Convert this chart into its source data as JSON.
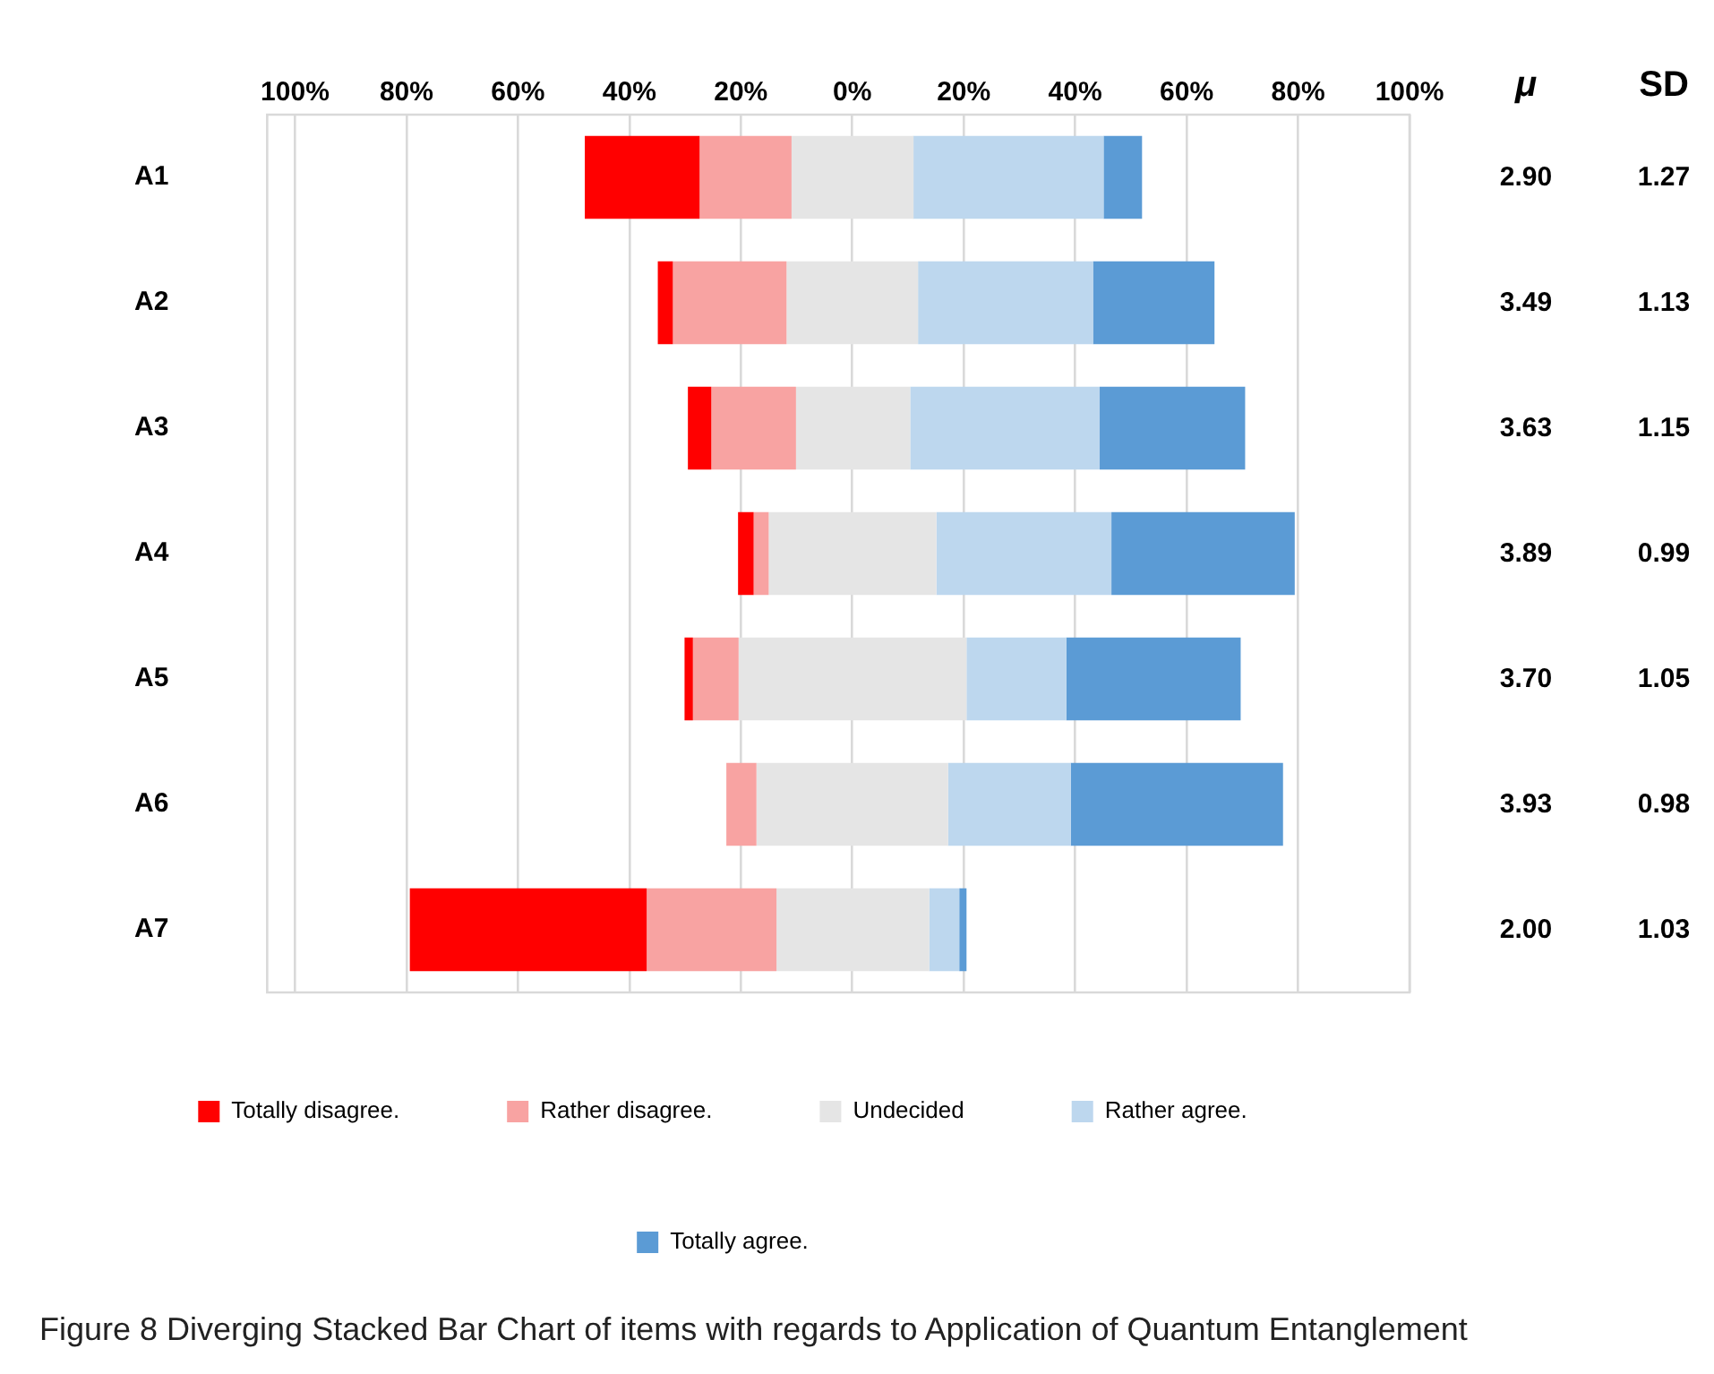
{
  "chart_data": {
    "type": "bar",
    "orientation": "horizontal",
    "categories": [
      "A1",
      "A2",
      "A3",
      "A4",
      "A5",
      "A6",
      "A7"
    ],
    "series": [
      {
        "name": "Totally disagree.",
        "color": "#ff0000",
        "base": [
          -48.0,
          -34.9,
          -29.5,
          -20.5,
          -30.1,
          null,
          -79.4
        ],
        "values": [
          20.6,
          2.7,
          4.2,
          2.8,
          1.5,
          null,
          42.5
        ]
      },
      {
        "name": "Rather disagree.",
        "color": "#f8a3a2",
        "base": [
          -27.4,
          -32.2,
          -25.3,
          -17.7,
          -28.6,
          -22.6,
          -36.9
        ],
        "values": [
          16.5,
          20.4,
          15.2,
          2.7,
          8.2,
          5.4,
          23.3
        ]
      },
      {
        "name": "Undecided",
        "color": "#e5e5e5",
        "base": [
          -10.9,
          -11.8,
          -10.1,
          -15.0,
          -20.4,
          -17.2,
          -13.6
        ],
        "values": [
          21.9,
          23.6,
          20.5,
          30.1,
          40.9,
          34.4,
          27.4
        ]
      },
      {
        "name": "Rather agree.",
        "color": "#bdd7ee",
        "base": [
          10.9,
          11.8,
          10.4,
          15.1,
          20.5,
          17.2,
          13.8
        ],
        "values": [
          34.2,
          31.4,
          34.0,
          31.4,
          17.9,
          22.0,
          5.4
        ]
      },
      {
        "name": "Totally agree.",
        "color": "#5b9bd5",
        "base": [
          45.1,
          43.2,
          44.4,
          46.5,
          38.4,
          39.2,
          19.2
        ],
        "values": [
          6.9,
          21.8,
          26.1,
          32.9,
          31.3,
          38.1,
          1.3
        ]
      }
    ],
    "xlim": [
      -105,
      100
    ],
    "xticks": [
      {
        "value": -100,
        "label": "100%"
      },
      {
        "value": -80,
        "label": "80%"
      },
      {
        "value": -60,
        "label": "60%"
      },
      {
        "value": -40,
        "label": "40%"
      },
      {
        "value": -20,
        "label": "20%"
      },
      {
        "value": 0,
        "label": "0%"
      },
      {
        "value": 20,
        "label": "20%"
      },
      {
        "value": 40,
        "label": "40%"
      },
      {
        "value": 60,
        "label": "60%"
      },
      {
        "value": 80,
        "label": "80%"
      },
      {
        "value": 100,
        "label": "100%"
      }
    ],
    "grid": "x",
    "legend": "bottom",
    "annotations": [
      "μ",
      "SD",
      "2.90",
      "1.27",
      "3.49",
      "1.13",
      "3.63",
      "1.15",
      "3.89",
      "0.99",
      "3.70",
      "1.05",
      "3.93",
      "0.98",
      "2.00",
      "1.03",
      "Figure 8 Diverging Stacked Bar Chart of items with regards to Application of Quantum Entanglement"
    ]
  }
}
